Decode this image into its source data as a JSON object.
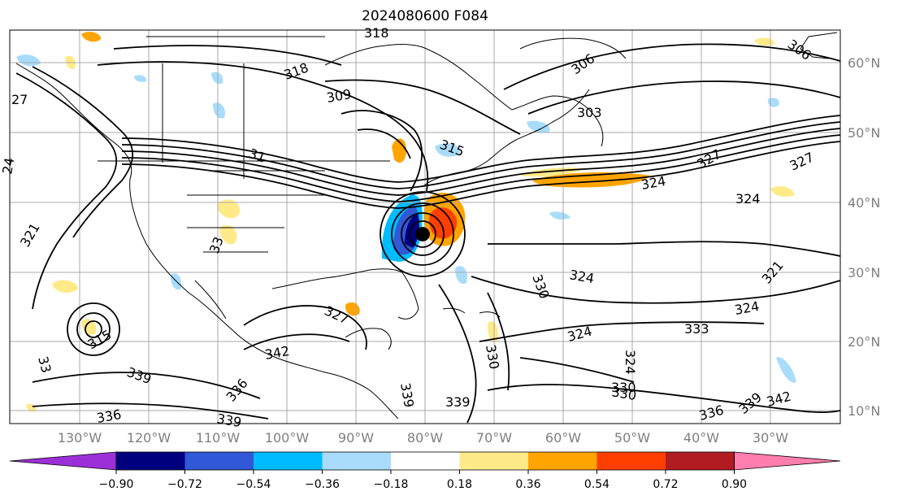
{
  "title": "2024080600 F084",
  "map": {
    "longitude_labels": [
      "130°W",
      "120°W",
      "110°W",
      "100°W",
      "90°W",
      "80°W",
      "70°W",
      "60°W",
      "50°W",
      "40°W",
      "30°W"
    ],
    "latitude_labels": [
      "60°N",
      "50°N",
      "40°N",
      "30°N",
      "20°N",
      "10°N"
    ],
    "contour_labels": [
      "318",
      "318",
      "306",
      "306",
      "309",
      "303",
      "27",
      "315",
      "327",
      "324",
      "324",
      "327",
      "324",
      "324",
      "321",
      "324",
      "321",
      "330",
      "330",
      "324",
      "327",
      "333",
      "339",
      "342",
      "339",
      "336",
      "336",
      "339",
      "339",
      "330",
      "336",
      "339",
      "342",
      "24",
      "31",
      "315",
      "33",
      "330",
      "33"
    ]
  },
  "colorbar": {
    "tick_labels": [
      "−0.90",
      "−0.72",
      "−0.54",
      "−0.36",
      "−0.18",
      "0.18",
      "0.36",
      "0.54",
      "0.72",
      "0.90"
    ],
    "colors": [
      "#9b30d8",
      "#00007f",
      "#3158d6",
      "#00bbff",
      "#a9dcfb",
      "#ffffff",
      "#ffea8a",
      "#ffa400",
      "#ff3f00",
      "#b01c22",
      "#ff7eab"
    ]
  },
  "colors": {
    "contour": "#000000",
    "grid": "#a9a9a9",
    "coast": "#000000",
    "tick_label": "#7f7f7f"
  }
}
